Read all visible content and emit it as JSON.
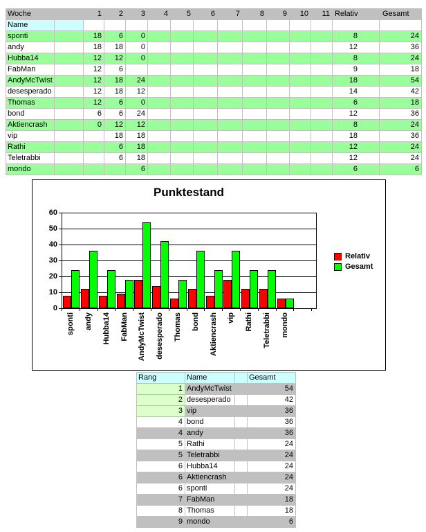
{
  "top_table": {
    "corner_label": "Woche",
    "week_headers": [
      "1",
      "2",
      "3",
      "4",
      "5",
      "6",
      "7",
      "8",
      "9",
      "10",
      "11"
    ],
    "relativ_header": "Relativ",
    "gesamt_header": "Gesamt",
    "name_label": "Name",
    "rows": [
      {
        "name": "sponti",
        "weeks": [
          "18",
          "6",
          "0",
          "",
          "",
          "",
          "",
          "",
          "",
          "",
          ""
        ],
        "relativ": "8",
        "gesamt": "24",
        "highlight": true
      },
      {
        "name": "andy",
        "weeks": [
          "18",
          "18",
          "0",
          "",
          "",
          "",
          "",
          "",
          "",
          "",
          ""
        ],
        "relativ": "12",
        "gesamt": "36",
        "highlight": false
      },
      {
        "name": "Hubba14",
        "weeks": [
          "12",
          "12",
          "0",
          "",
          "",
          "",
          "",
          "",
          "",
          "",
          ""
        ],
        "relativ": "8",
        "gesamt": "24",
        "highlight": true
      },
      {
        "name": "FabMan",
        "weeks": [
          "12",
          "6",
          "",
          "",
          "",
          "",
          "",
          "",
          "",
          "",
          ""
        ],
        "relativ": "9",
        "gesamt": "18",
        "highlight": false
      },
      {
        "name": "AndyMcTwist",
        "weeks": [
          "12",
          "18",
          "24",
          "",
          "",
          "",
          "",
          "",
          "",
          "",
          ""
        ],
        "relativ": "18",
        "gesamt": "54",
        "highlight": true
      },
      {
        "name": "desesperado",
        "weeks": [
          "12",
          "18",
          "12",
          "",
          "",
          "",
          "",
          "",
          "",
          "",
          ""
        ],
        "relativ": "14",
        "gesamt": "42",
        "highlight": false
      },
      {
        "name": "Thomas",
        "weeks": [
          "12",
          "6",
          "0",
          "",
          "",
          "",
          "",
          "",
          "",
          "",
          ""
        ],
        "relativ": "6",
        "gesamt": "18",
        "highlight": true
      },
      {
        "name": "bond",
        "weeks": [
          "6",
          "6",
          "24",
          "",
          "",
          "",
          "",
          "",
          "",
          "",
          ""
        ],
        "relativ": "12",
        "gesamt": "36",
        "highlight": false
      },
      {
        "name": "Aktiencrash",
        "weeks": [
          "0",
          "12",
          "12",
          "",
          "",
          "",
          "",
          "",
          "",
          "",
          ""
        ],
        "relativ": "8",
        "gesamt": "24",
        "highlight": true
      },
      {
        "name": "vip",
        "weeks": [
          "",
          "18",
          "18",
          "",
          "",
          "",
          "",
          "",
          "",
          "",
          ""
        ],
        "relativ": "18",
        "gesamt": "36",
        "highlight": false
      },
      {
        "name": "Rathi",
        "weeks": [
          "",
          "6",
          "18",
          "",
          "",
          "",
          "",
          "",
          "",
          "",
          ""
        ],
        "relativ": "12",
        "gesamt": "24",
        "highlight": true
      },
      {
        "name": "Teletrabbi",
        "weeks": [
          "",
          "6",
          "18",
          "",
          "",
          "",
          "",
          "",
          "",
          "",
          ""
        ],
        "relativ": "12",
        "gesamt": "24",
        "highlight": false
      },
      {
        "name": "mondo",
        "weeks": [
          "",
          "",
          "6",
          "",
          "",
          "",
          "",
          "",
          "",
          "",
          ""
        ],
        "relativ": "6",
        "gesamt": "6",
        "highlight": true
      }
    ]
  },
  "chart_data": {
    "type": "bar",
    "title": "Punktestand",
    "categories": [
      "sponti",
      "andy",
      "Hubba14",
      "FabMan",
      "AndyMcTwist",
      "desesperado",
      "Thomas",
      "bond",
      "Aktiencrash",
      "vip",
      "Rathi",
      "Teletrabbi",
      "mondo"
    ],
    "series": [
      {
        "name": "Relativ",
        "color": "#ff0000",
        "values": [
          8,
          12,
          8,
          9,
          18,
          14,
          6,
          12,
          8,
          18,
          12,
          12,
          6
        ]
      },
      {
        "name": "Gesamt",
        "color": "#00ff00",
        "values": [
          24,
          36,
          24,
          18,
          54,
          42,
          18,
          36,
          24,
          36,
          24,
          24,
          6
        ]
      }
    ],
    "ylim": [
      0,
      60
    ],
    "ytick_step": 10,
    "grid": true,
    "legend_position": "right"
  },
  "rank_table": {
    "headers": [
      "Rang",
      "Name",
      "Gesamt"
    ],
    "rows": [
      {
        "rang": "1",
        "name": "AndyMcTwist",
        "gesamt": "54"
      },
      {
        "rang": "2",
        "name": "desesperado",
        "gesamt": "42"
      },
      {
        "rang": "3",
        "name": "vip",
        "gesamt": "36"
      },
      {
        "rang": "4",
        "name": "bond",
        "gesamt": "36"
      },
      {
        "rang": "4",
        "name": "andy",
        "gesamt": "36"
      },
      {
        "rang": "5",
        "name": "Rathi",
        "gesamt": "24"
      },
      {
        "rang": "5",
        "name": "Teletrabbi",
        "gesamt": "24"
      },
      {
        "rang": "6",
        "name": "Hubba14",
        "gesamt": "24"
      },
      {
        "rang": "6",
        "name": "Aktiencrash",
        "gesamt": "24"
      },
      {
        "rang": "6",
        "name": "sponti",
        "gesamt": "24"
      },
      {
        "rang": "7",
        "name": "FabMan",
        "gesamt": "18"
      },
      {
        "rang": "8",
        "name": "Thomas",
        "gesamt": "18"
      },
      {
        "rang": "9",
        "name": "mondo",
        "gesamt": "6"
      }
    ]
  },
  "colors": {
    "header_bg": "#c0c0c0",
    "highlight_row": "#99ff99",
    "cyan_cell": "#ccffff",
    "rank_top3": "#ddffcc",
    "gray_row": "#c0c0c0",
    "gridline": "#c0c0c0",
    "relativ_bar": "#ff0000",
    "gesamt_bar": "#00ff00"
  }
}
